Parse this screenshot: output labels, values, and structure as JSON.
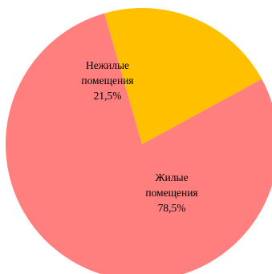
{
  "chart_data": {
    "type": "pie",
    "title": "",
    "start_angle_deg": 16,
    "slices": [
      {
        "label_lines": [
          "Нежилые",
          "помещения"
        ],
        "value": 21.5,
        "value_label": "21,5%",
        "color": "#FFC000"
      },
      {
        "label_lines": [
          "Жилые",
          "помещения"
        ],
        "value": 78.5,
        "value_label": "78,5%",
        "color": "#FF7F7F"
      }
    ]
  }
}
